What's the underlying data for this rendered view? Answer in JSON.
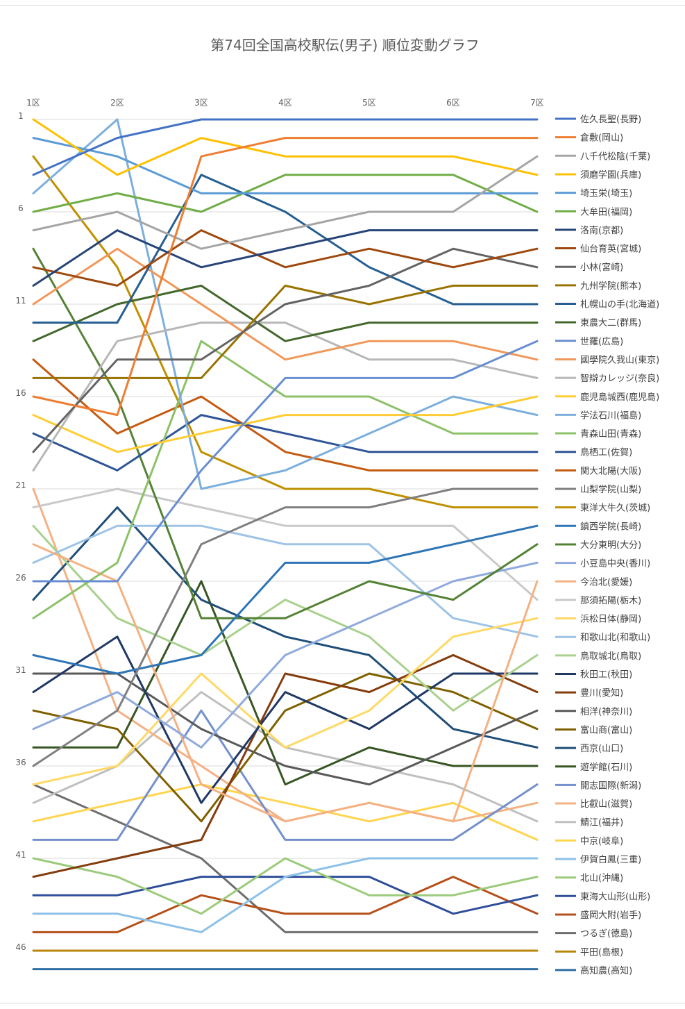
{
  "chart_data": {
    "type": "line",
    "title": "第74回全国高校駅伝(男子) 順位変動グラフ",
    "categories": [
      "1区",
      "2区",
      "3区",
      "4区",
      "5区",
      "6区",
      "7区"
    ],
    "y_ticks": [
      "1",
      "6",
      "11",
      "16",
      "21",
      "26",
      "31",
      "36",
      "41",
      "46"
    ],
    "ylim": [
      1,
      47
    ],
    "y_reversed": true,
    "grid": "horizontal",
    "legend_position": "right",
    "series": [
      {
        "name": "佐久長聖(長野)",
        "color": "#4472C4",
        "values": [
          4,
          2,
          1,
          1,
          1,
          1,
          1
        ]
      },
      {
        "name": "倉敷(岡山)",
        "color": "#ED7D31",
        "values": [
          16,
          17,
          3,
          2,
          2,
          2,
          2
        ]
      },
      {
        "name": "八千代松陰(千葉)",
        "color": "#A5A5A5",
        "values": [
          7,
          6,
          8,
          7,
          6,
          6,
          3
        ]
      },
      {
        "name": "須磨学園(兵庫)",
        "color": "#FFC000",
        "values": [
          1,
          4,
          2,
          3,
          3,
          3,
          4
        ]
      },
      {
        "name": "埼玉栄(埼玉)",
        "color": "#5B9BD5",
        "values": [
          2,
          3,
          5,
          5,
          5,
          5,
          5
        ]
      },
      {
        "name": "大牟田(福岡)",
        "color": "#70AD47",
        "values": [
          6,
          5,
          6,
          4,
          4,
          4,
          6
        ]
      },
      {
        "name": "洛南(京都)",
        "color": "#264478",
        "values": [
          10,
          7,
          9,
          8,
          7,
          7,
          7
        ]
      },
      {
        "name": "仙台育英(宮城)",
        "color": "#9E480E",
        "values": [
          9,
          10,
          7,
          9,
          8,
          9,
          8
        ]
      },
      {
        "name": "小林(宮崎)",
        "color": "#636363",
        "values": [
          19,
          14,
          14,
          11,
          10,
          8,
          9
        ]
      },
      {
        "name": "九州学院(熊本)",
        "color": "#997300",
        "values": [
          15,
          15,
          15,
          10,
          11,
          10,
          10
        ]
      },
      {
        "name": "札幌山の手(北海道)",
        "color": "#255E91",
        "values": [
          12,
          12,
          4,
          6,
          9,
          11,
          11
        ]
      },
      {
        "name": "東農大二(群馬)",
        "color": "#43682B",
        "values": [
          13,
          11,
          10,
          13,
          12,
          12,
          12
        ]
      },
      {
        "name": "世羅(広島)",
        "color": "#698ED0",
        "values": [
          26,
          26,
          20,
          15,
          15,
          15,
          13
        ]
      },
      {
        "name": "國學院久我山(東京)",
        "color": "#F1975A",
        "values": [
          11,
          8,
          11,
          14,
          13,
          13,
          14
        ]
      },
      {
        "name": "智辯カレッジ(奈良)",
        "color": "#B7B7B7",
        "values": [
          20,
          13,
          12,
          12,
          14,
          14,
          15
        ]
      },
      {
        "name": "鹿児島城西(鹿児島)",
        "color": "#FFCD33",
        "values": [
          17,
          19,
          18,
          17,
          17,
          17,
          16
        ]
      },
      {
        "name": "学法石川(福島)",
        "color": "#7CAFDD",
        "values": [
          5,
          1,
          21,
          20,
          18,
          16,
          17
        ]
      },
      {
        "name": "青森山田(青森)",
        "color": "#8CC168",
        "values": [
          28,
          25,
          13,
          16,
          16,
          18,
          18
        ]
      },
      {
        "name": "鳥栖工(佐賀)",
        "color": "#2F5597",
        "values": [
          18,
          20,
          17,
          18,
          19,
          19,
          19
        ]
      },
      {
        "name": "関大北陽(大阪)",
        "color": "#C55A11",
        "values": [
          14,
          18,
          16,
          19,
          20,
          20,
          20
        ]
      },
      {
        "name": "山梨学院(山梨)",
        "color": "#7F7F7F",
        "values": [
          36,
          33,
          24,
          22,
          22,
          21,
          21
        ]
      },
      {
        "name": "東洋大牛久(茨城)",
        "color": "#BF9000",
        "values": [
          3,
          9,
          19,
          21,
          21,
          22,
          22
        ]
      },
      {
        "name": "鎮西学院(長崎)",
        "color": "#2E75B6",
        "values": [
          30,
          31,
          30,
          25,
          25,
          24,
          23
        ]
      },
      {
        "name": "大分東明(大分)",
        "color": "#548235",
        "values": [
          8,
          16,
          28,
          28,
          26,
          27,
          24
        ]
      },
      {
        "name": "小豆島中央(香川)",
        "color": "#8FAADC",
        "values": [
          34,
          32,
          35,
          30,
          28,
          26,
          25
        ]
      },
      {
        "name": "今治北(愛媛)",
        "color": "#F4B183",
        "values": [
          24,
          26,
          37,
          39,
          38,
          39,
          26
        ]
      },
      {
        "name": "那須拓陽(栃木)",
        "color": "#C9C9C9",
        "values": [
          22,
          21,
          22,
          23,
          23,
          23,
          27
        ]
      },
      {
        "name": "浜松日体(静岡)",
        "color": "#FFD966",
        "values": [
          37,
          36,
          31,
          35,
          33,
          29,
          28
        ]
      },
      {
        "name": "和歌山北(和歌山)",
        "color": "#9DC3E6",
        "values": [
          25,
          23,
          23,
          24,
          24,
          28,
          29
        ]
      },
      {
        "name": "鳥取城北(鳥取)",
        "color": "#A9D18E",
        "values": [
          23,
          28,
          30,
          27,
          29,
          33,
          30
        ]
      },
      {
        "name": "秋田工(秋田)",
        "color": "#1F3864",
        "values": [
          32,
          29,
          38,
          32,
          34,
          31,
          31
        ]
      },
      {
        "name": "豊川(愛知)",
        "color": "#843C0C",
        "values": [
          42,
          41,
          40,
          31,
          32,
          30,
          32
        ]
      },
      {
        "name": "相洋(神奈川)",
        "color": "#595959",
        "values": [
          31,
          31,
          34,
          36,
          37,
          35,
          33
        ]
      },
      {
        "name": "富山商(富山)",
        "color": "#7F6000",
        "values": [
          33,
          34,
          39,
          33,
          31,
          32,
          34
        ]
      },
      {
        "name": "西京(山口)",
        "color": "#1F4E79",
        "values": [
          27,
          22,
          27,
          29,
          30,
          34,
          35
        ]
      },
      {
        "name": "遊学館(石川)",
        "color": "#375623",
        "values": [
          35,
          35,
          26,
          37,
          35,
          36,
          36
        ]
      },
      {
        "name": "開志国際(新潟)",
        "color": "#7390CC",
        "values": [
          40,
          40,
          33,
          40,
          40,
          40,
          37
        ]
      },
      {
        "name": "比叡山(滋賀)",
        "color": "#F4B183",
        "values": [
          21,
          33,
          36,
          39,
          38,
          39,
          38
        ]
      },
      {
        "name": "鯖江(福井)",
        "color": "#BFBFBF",
        "values": [
          38,
          36,
          32,
          35,
          36,
          37,
          39
        ]
      },
      {
        "name": "中京(岐阜)",
        "color": "#FFD54F",
        "values": [
          39,
          38,
          37,
          38,
          39,
          38,
          40
        ]
      },
      {
        "name": "伊賀白鳳(三重)",
        "color": "#8EC1E8",
        "values": [
          44,
          44,
          45,
          42,
          41,
          41,
          41
        ]
      },
      {
        "name": "北山(沖縄)",
        "color": "#9BCB7A",
        "values": [
          41,
          42,
          44,
          41,
          43,
          43,
          42
        ]
      },
      {
        "name": "東海大山形(山形)",
        "color": "#2F4E9A",
        "values": [
          43,
          43,
          42,
          42,
          42,
          44,
          43
        ]
      },
      {
        "name": "盛岡大附(岩手)",
        "color": "#B5501A",
        "values": [
          45,
          45,
          43,
          44,
          44,
          42,
          44
        ]
      },
      {
        "name": "つるぎ(徳島)",
        "color": "#6E6E6E",
        "values": [
          37,
          39,
          41,
          45,
          45,
          45,
          45
        ]
      },
      {
        "name": "平田(島根)",
        "color": "#B8860B",
        "values": [
          46,
          46,
          46,
          46,
          46,
          46,
          46
        ]
      },
      {
        "name": "高知農(高知)",
        "color": "#2E6DA4",
        "values": [
          47,
          47,
          47,
          47,
          47,
          47,
          47
        ]
      }
    ]
  }
}
